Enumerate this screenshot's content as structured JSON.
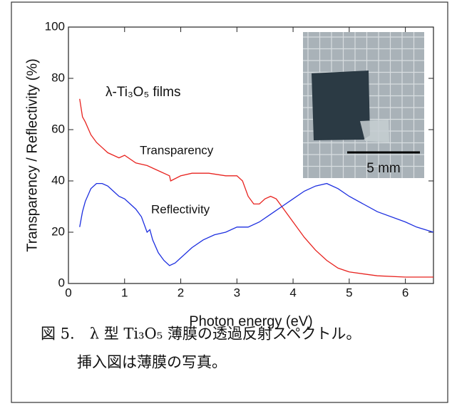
{
  "chart_data": {
    "type": "line",
    "xlabel": "Photon energy (eV)",
    "ylabel": "Transparency / Reflectivity (%)",
    "xlim": [
      0,
      6.5
    ],
    "xticks": [
      0,
      1,
      2,
      3,
      4,
      5,
      6
    ],
    "ylim": [
      0,
      100
    ],
    "yticks": [
      0,
      20,
      40,
      60,
      80,
      100
    ],
    "annotations": [
      "λ-Ti₃O₅ films",
      "Transparency",
      "Reflectivity",
      "5 mm"
    ],
    "series": [
      {
        "name": "Transparency",
        "color": "#e8231f",
        "x": [
          0.2,
          0.25,
          0.3,
          0.4,
          0.5,
          0.6,
          0.7,
          0.8,
          0.9,
          1.0,
          1.2,
          1.4,
          1.6,
          1.8,
          1.82,
          2.0,
          2.2,
          2.5,
          2.8,
          3.0,
          3.1,
          3.2,
          3.3,
          3.4,
          3.5,
          3.6,
          3.7,
          3.8,
          4.0,
          4.2,
          4.4,
          4.6,
          4.8,
          5.0,
          5.5,
          6.0,
          6.5
        ],
        "values": [
          72,
          65,
          63,
          58,
          55,
          53,
          51,
          50,
          49,
          50,
          47,
          46,
          44,
          42,
          40,
          42,
          43,
          43,
          42,
          42,
          40,
          34,
          31,
          31,
          33,
          34,
          33,
          30,
          24,
          18,
          13,
          9,
          6,
          4.5,
          3,
          2.5,
          2.5
        ]
      },
      {
        "name": "Reflectivity",
        "color": "#1d2fe0",
        "x": [
          0.2,
          0.25,
          0.3,
          0.4,
          0.5,
          0.6,
          0.7,
          0.8,
          0.9,
          1.0,
          1.1,
          1.2,
          1.3,
          1.4,
          1.45,
          1.5,
          1.6,
          1.7,
          1.8,
          1.9,
          2.0,
          2.2,
          2.4,
          2.6,
          2.8,
          3.0,
          3.2,
          3.4,
          3.6,
          3.8,
          4.0,
          4.2,
          4.4,
          4.6,
          4.8,
          5.0,
          5.5,
          6.0,
          6.2,
          6.5
        ],
        "values": [
          22,
          28,
          32,
          37,
          39,
          39,
          38,
          36,
          34,
          33,
          31,
          29,
          26,
          20,
          21,
          17,
          12,
          9,
          7,
          8,
          10,
          14,
          17,
          19,
          20,
          22,
          22,
          24,
          27,
          30,
          33,
          36,
          38,
          39,
          37,
          34,
          28,
          24,
          22,
          20
        ]
      }
    ]
  },
  "caption": [
    "図 5.　λ 型 Ti₃O₅ 薄膜の透過反射スペクトル。",
    "挿入図は薄膜の写真。"
  ]
}
